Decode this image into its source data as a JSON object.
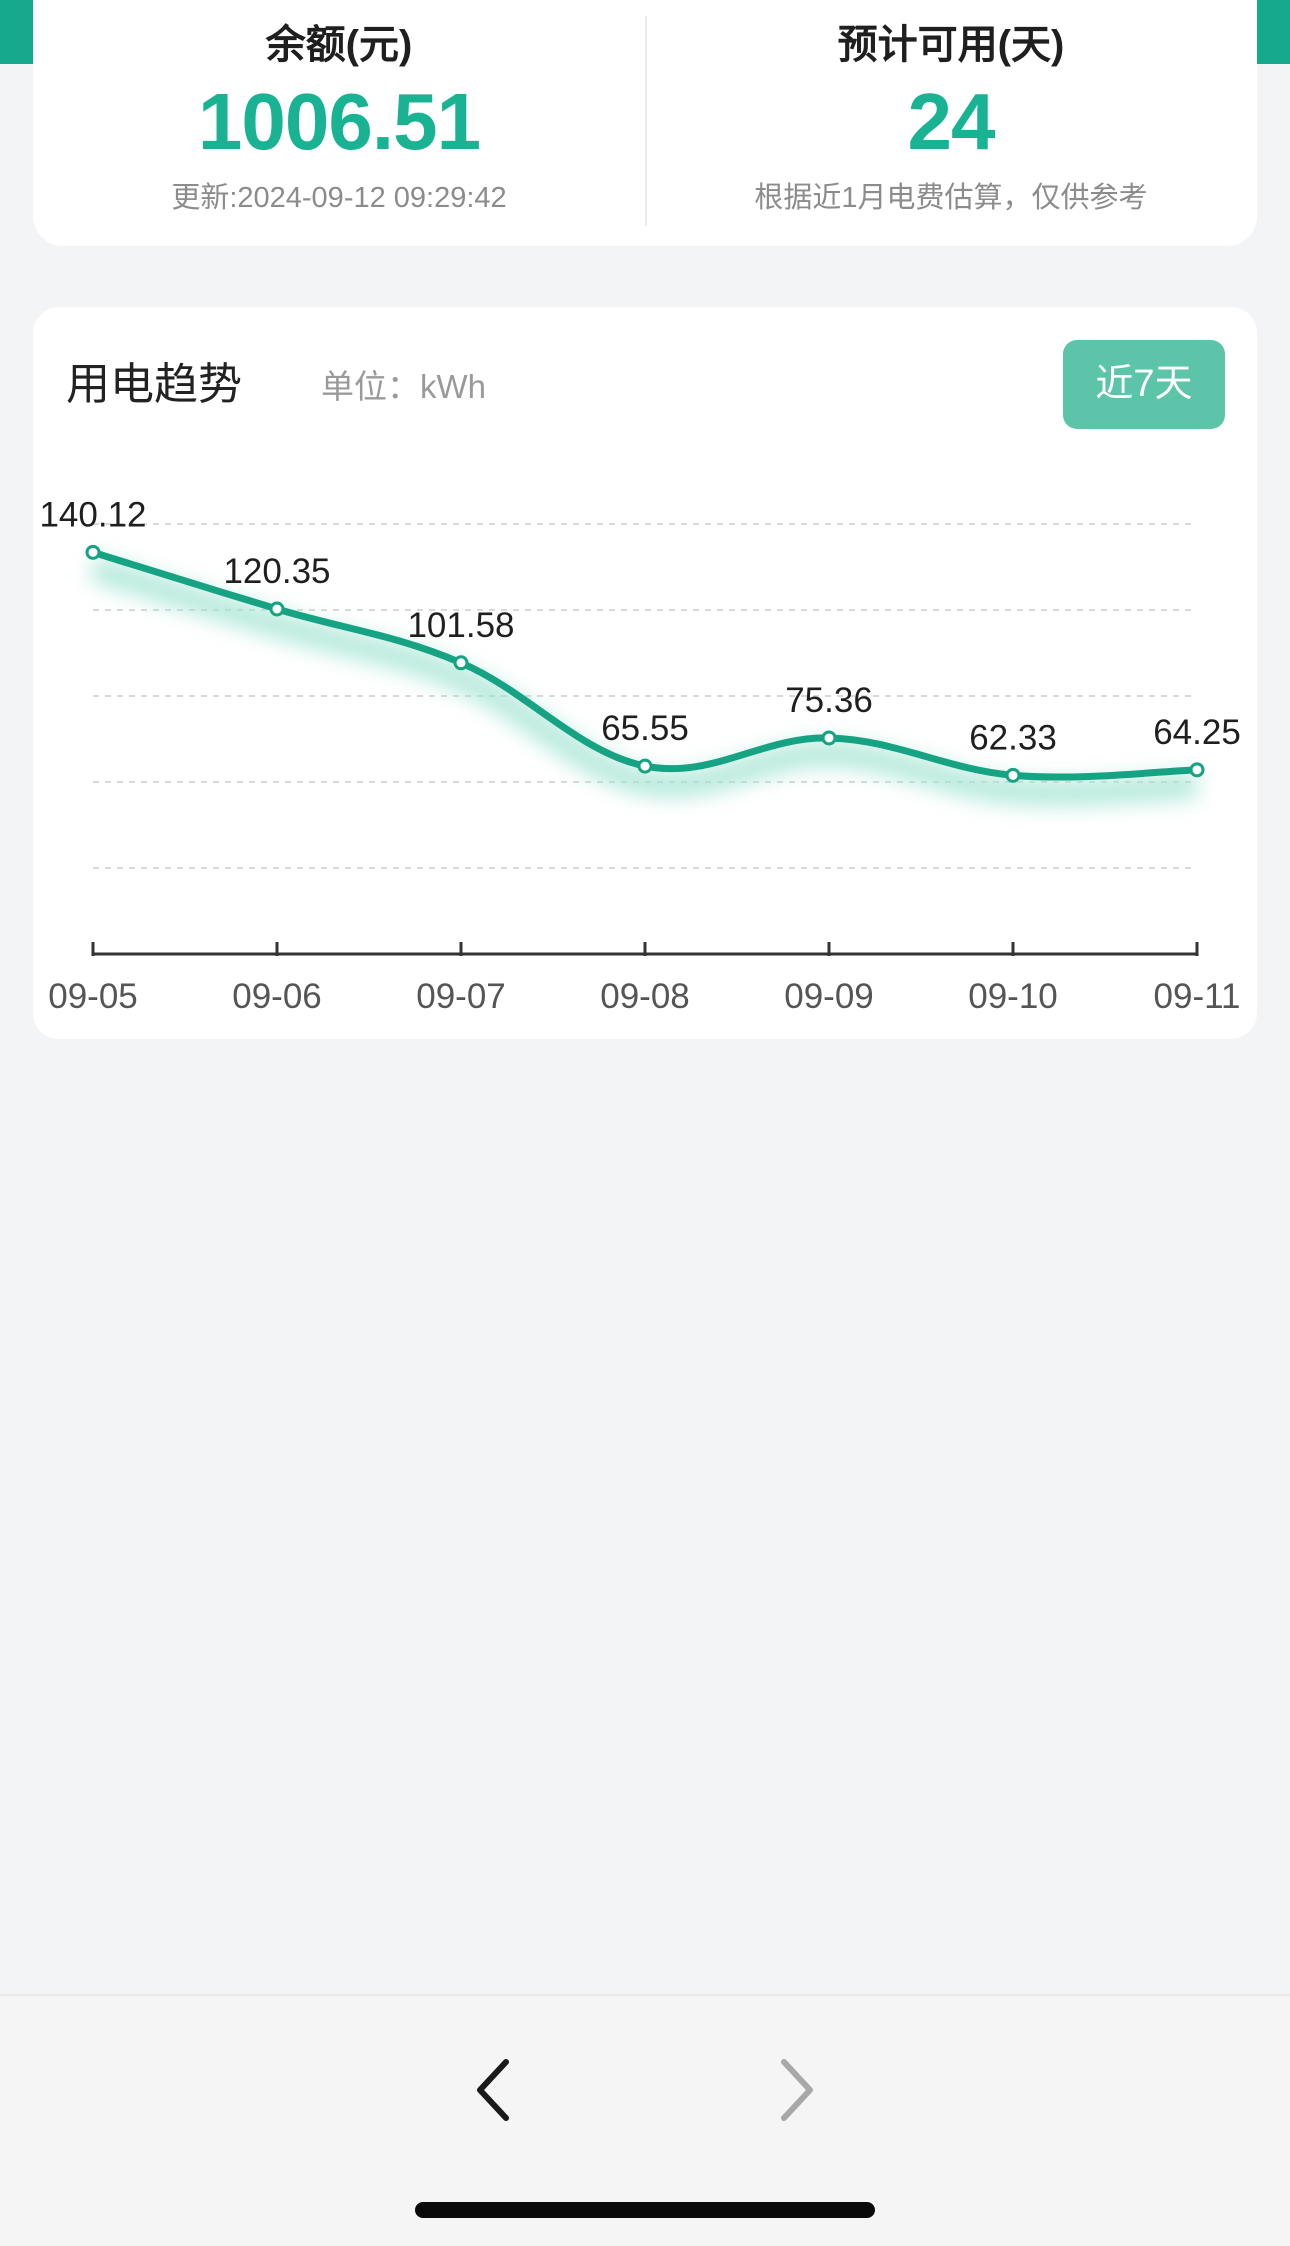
{
  "balance": {
    "title": "余额(元)",
    "amount": "1006.51",
    "updated": "更新:2024-09-12 09:29:42"
  },
  "estimate": {
    "title": "预计可用(天)",
    "days": "24",
    "note": "根据近1月电费估算，仅供参考"
  },
  "trend": {
    "title": "用电趋势",
    "unit": "单位：kWh",
    "range_button": "近7天"
  },
  "chart_data": {
    "type": "line",
    "x": [
      "09-05",
      "09-06",
      "09-07",
      "09-08",
      "09-09",
      "09-10",
      "09-11"
    ],
    "series": [
      {
        "values": [
          140.12,
          120.35,
          101.58,
          65.55,
          75.36,
          62.33,
          64.25
        ],
        "labels": [
          "140.12",
          "120.35",
          "101.58",
          "65.55",
          "75.36",
          "62.33",
          "64.25"
        ]
      }
    ],
    "ylim": [
      0,
      150
    ],
    "grid": true,
    "colors": {
      "line": "#16a383",
      "glow": "#9fe3d0",
      "grid": "#d9d9d9",
      "axis": "#333333"
    }
  },
  "nav": {
    "prev_icon": "chevron-left-icon",
    "next_icon": "chevron-right-icon"
  }
}
